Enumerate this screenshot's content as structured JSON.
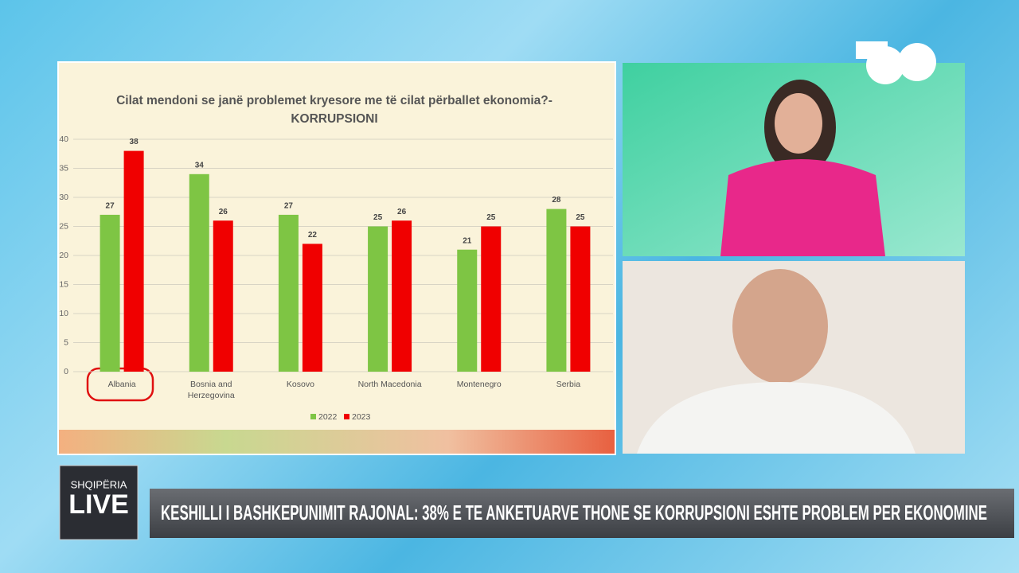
{
  "chart_data": {
    "type": "bar",
    "title": "Cilat mendoni se janë problemet kryesore me të cilat përballet ekonomia?- KORRUPSIONI",
    "categories": [
      "Albania",
      "Bosnia and Herzegovina",
      "Kosovo",
      "North Macedonia",
      "Montenegro",
      "Serbia"
    ],
    "series": [
      {
        "name": "2022",
        "color": "#7ec544",
        "values": [
          27,
          34,
          27,
          25,
          21,
          28
        ]
      },
      {
        "name": "2023",
        "color": "#f00000",
        "values": [
          38,
          26,
          22,
          26,
          25,
          25
        ]
      }
    ],
    "ylim": [
      0,
      40
    ],
    "yticks": [
      0,
      5,
      10,
      15,
      20,
      25,
      30,
      35,
      40
    ],
    "grid": true,
    "legend": "bottom"
  },
  "logo": {
    "top": "SHQIPËRIA",
    "bottom": "LIVE"
  },
  "ticker": "KESHILLI I BASHKEPUNIMIT RAJONAL: 38% E TE ANKETUARVE THONE SE KORRUPSIONI ESHTE PROBLEM PER EKONOMINE"
}
